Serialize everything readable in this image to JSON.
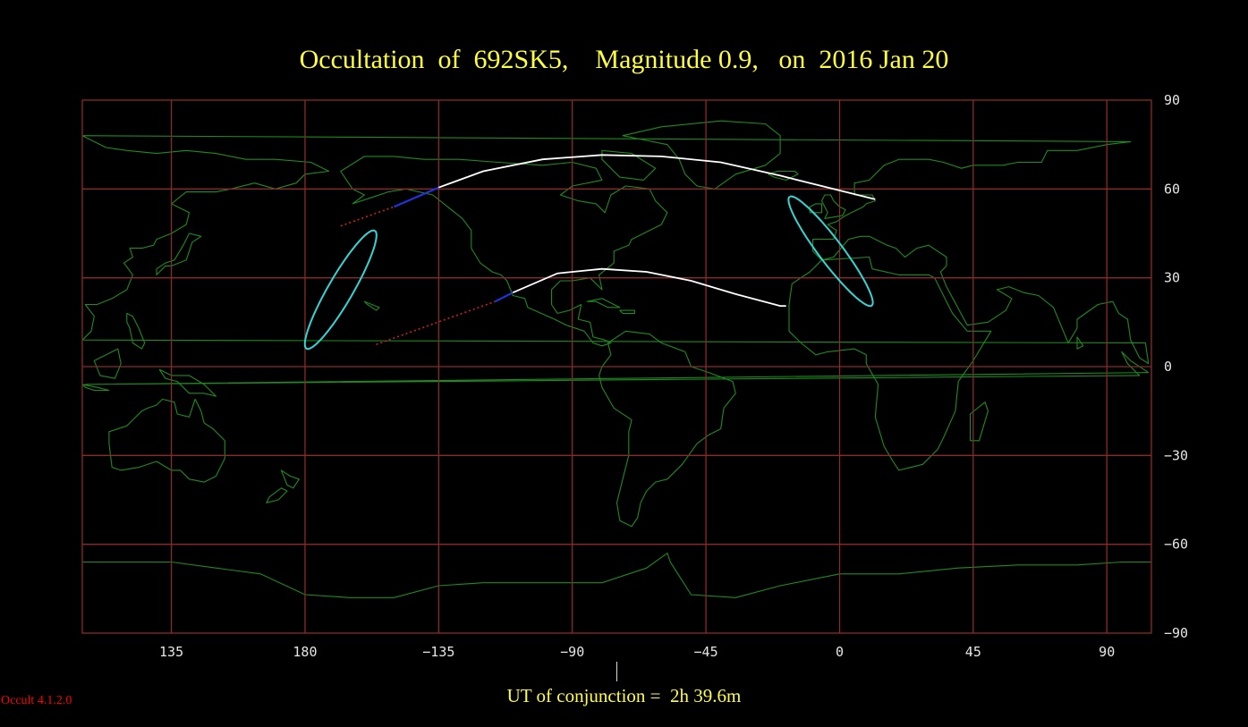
{
  "title": {
    "part1": "Occultation  of  692SK5,",
    "part2": "Magnitude 0.9,   on  2016 Jan 20"
  },
  "conjunction_text": "UT of conjunction =  2h 39.6m",
  "version": "Occult 4.1.2.0",
  "colors": {
    "background": "#000000",
    "grid": "#8a2a2a",
    "coast": "#1e8c1e",
    "path_limit": "#ffffff",
    "ellipse": "#33d6d6",
    "extension_dotted": "#cc2222",
    "extension_solid": "#2233dd",
    "title": "#ffff3c",
    "version": "#ff0000"
  },
  "map": {
    "projection": "equirectangular",
    "lon_start": 105,
    "lon_end": 465,
    "lat_range": [
      -90,
      90
    ],
    "lat_ticks": [
      90,
      60,
      30,
      0,
      -30,
      -60,
      -90
    ],
    "lat_tick_labels": [
      "90",
      "60",
      "30",
      "0",
      "−30",
      "−60",
      "−90"
    ],
    "lon_ticks": [
      135,
      180,
      225,
      270,
      315,
      360,
      405,
      450
    ],
    "lon_tick_labels": [
      "135",
      "180",
      "−135",
      "−90",
      "−45",
      "0",
      "45",
      "90"
    ]
  },
  "occultation_path": {
    "north_limit": [
      [
        -135,
        60.5
      ],
      [
        -120,
        66
      ],
      [
        -100,
        70
      ],
      [
        -80,
        71.5
      ],
      [
        -60,
        71
      ],
      [
        -40,
        69
      ],
      [
        -20,
        64.5
      ],
      [
        -8,
        61.5
      ],
      [
        12,
        56.5
      ]
    ],
    "south_limit": [
      [
        -110,
        25
      ],
      [
        -95,
        31.5
      ],
      [
        -80,
        33
      ],
      [
        -65,
        32
      ],
      [
        -50,
        29
      ],
      [
        -35,
        24.5
      ],
      [
        -20,
        20.5
      ],
      [
        -18,
        20.5
      ]
    ],
    "north_extension_dotted": [
      [
        -168,
        47.5
      ],
      [
        -150,
        54
      ]
    ],
    "north_extension_solid": [
      [
        -150,
        54
      ],
      [
        -135,
        60.5
      ]
    ],
    "south_extension_dotted": [
      [
        -156,
        7.5
      ],
      [
        -116,
        22
      ]
    ],
    "south_extension_solid": [
      [
        -116,
        22
      ],
      [
        -110,
        25
      ]
    ],
    "west_ellipse": {
      "center": [
        -168,
        26
      ],
      "semi_major_deg": 23,
      "semi_minor_deg": 4.2,
      "tilt_deg": 60
    },
    "east_ellipse": {
      "center": [
        -3,
        39
      ],
      "semi_major_deg": 23,
      "semi_minor_deg": 4.0,
      "tilt_deg": 127
    }
  }
}
